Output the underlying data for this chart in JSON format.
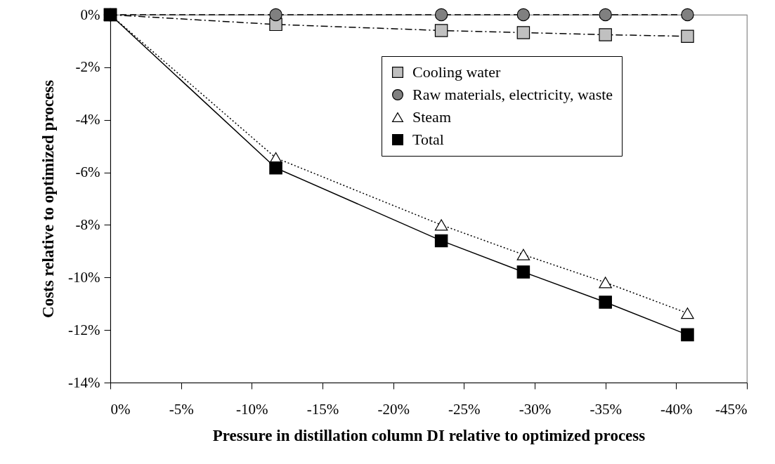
{
  "chart_data": {
    "type": "line",
    "xlabel": "Pressure in distillation column DI relative to optimized process",
    "ylabel": "Costs relative to optimized process",
    "x": [
      0,
      -11.7,
      -23.4,
      -29.2,
      -35.0,
      -40.8
    ],
    "series": [
      {
        "name": "Cooling water",
        "color": "#c0c0c0",
        "marker": "square",
        "line_style": "dashdot",
        "values": [
          0,
          -0.37,
          -0.6,
          -0.68,
          -0.76,
          -0.82
        ]
      },
      {
        "name": "Raw materials, electricity, waste",
        "color": "#808080",
        "marker": "circle",
        "line_style": "dashed",
        "values": [
          0,
          0,
          0,
          0,
          0,
          0
        ]
      },
      {
        "name": "Steam",
        "color": "#ffffff",
        "marker": "triangle",
        "line_style": "dotted",
        "values": [
          0,
          -5.45,
          -8.0,
          -9.13,
          -10.19,
          -11.36
        ]
      },
      {
        "name": "Total",
        "color": "#000000",
        "marker": "square",
        "line_style": "solid",
        "values": [
          0,
          -5.83,
          -8.6,
          -9.79,
          -10.94,
          -12.18
        ]
      }
    ],
    "xlim": [
      0,
      -45
    ],
    "xticks": [
      {
        "value": 0,
        "label": "0%"
      },
      {
        "value": -5,
        "label": "-5%"
      },
      {
        "value": -10,
        "label": "-10%"
      },
      {
        "value": -15,
        "label": "-15%"
      },
      {
        "value": -20,
        "label": "-20%"
      },
      {
        "value": -25,
        "label": "-25%"
      },
      {
        "value": -30,
        "label": "-30%"
      },
      {
        "value": -35,
        "label": "-35%"
      },
      {
        "value": -40,
        "label": "-40%"
      },
      {
        "value": -45,
        "label": "-45%"
      }
    ],
    "ylim": [
      -14,
      0
    ],
    "yticks": [
      {
        "value": 0,
        "label": "0%"
      },
      {
        "value": -2,
        "label": "-2%"
      },
      {
        "value": -4,
        "label": "-4%"
      },
      {
        "value": -6,
        "label": "-6%"
      },
      {
        "value": -8,
        "label": "-8%"
      },
      {
        "value": -10,
        "label": "-10%"
      },
      {
        "value": -12,
        "label": "-12%"
      },
      {
        "value": -14,
        "label": "-14%"
      }
    ],
    "grid": false,
    "legend": "top right"
  }
}
